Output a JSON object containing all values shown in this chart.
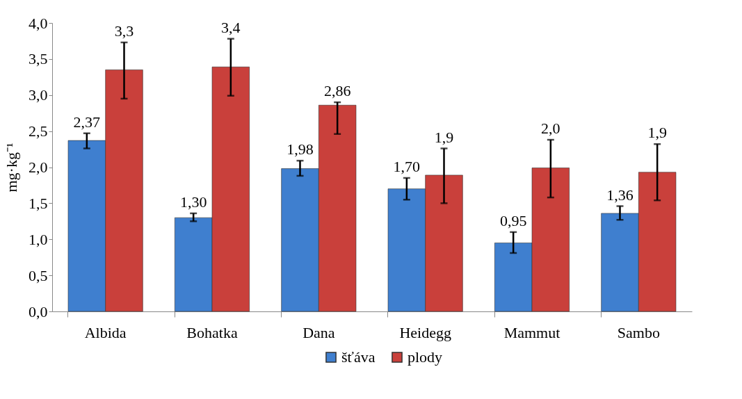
{
  "chart_data": {
    "type": "bar",
    "ylabel": "mg·kg⁻¹",
    "categories": [
      "Albida",
      "Bohatka",
      "Dana",
      "Heidegg",
      "Mammut",
      "Sambo"
    ],
    "series": [
      {
        "name": "šťáva",
        "color": "#3f7fcf",
        "values": [
          2.37,
          1.3,
          1.98,
          1.7,
          0.95,
          1.36
        ],
        "errors": [
          [
            2.26,
            2.47
          ],
          [
            1.25,
            1.36
          ],
          [
            1.88,
            2.09
          ],
          [
            1.55,
            1.85
          ],
          [
            0.81,
            1.1
          ],
          [
            1.27,
            1.46
          ]
        ],
        "value_labels": [
          "2,37",
          "1,30",
          "1,98",
          "1,70",
          "0,95",
          "1,36"
        ]
      },
      {
        "name": "plody",
        "color": "#c9403b",
        "values": [
          3.35,
          3.39,
          2.86,
          1.89,
          1.99,
          1.93
        ],
        "errors": [
          [
            2.95,
            3.73
          ],
          [
            2.99,
            3.78
          ],
          [
            2.46,
            2.9
          ],
          [
            1.5,
            2.26
          ],
          [
            1.58,
            2.38
          ],
          [
            1.54,
            2.32
          ]
        ],
        "value_labels": [
          "3,3",
          "3,4",
          "2,86",
          "1,9",
          "2,0",
          "1,9"
        ]
      }
    ],
    "ylim": [
      0,
      4.0
    ],
    "yticks": [
      {
        "value": 0,
        "label": "0,0"
      },
      {
        "value": 0.5,
        "label": "0,5"
      },
      {
        "value": 1.0,
        "label": "1,0"
      },
      {
        "value": 1.5,
        "label": "1,5"
      },
      {
        "value": 2.0,
        "label": "2,0"
      },
      {
        "value": 2.5,
        "label": "2,5"
      },
      {
        "value": 3.0,
        "label": "3,0"
      },
      {
        "value": 3.5,
        "label": "3,5"
      },
      {
        "value": 4.0,
        "label": "4,0"
      }
    ],
    "grid": false,
    "legend": "bottom"
  }
}
